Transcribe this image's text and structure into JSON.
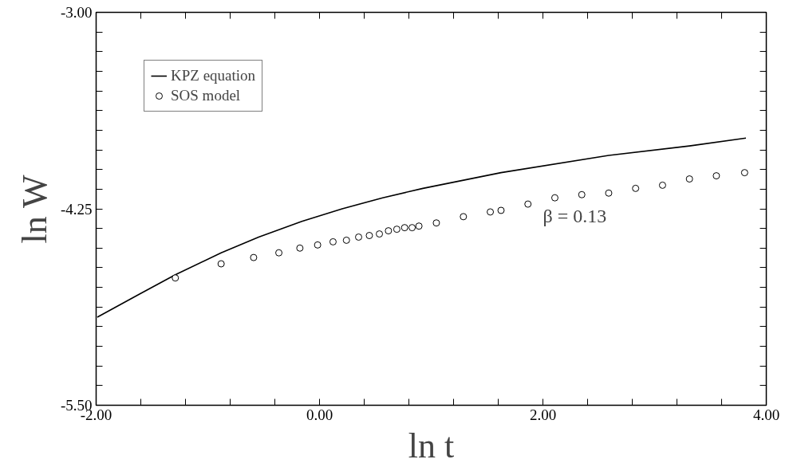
{
  "chart_data": {
    "type": "line",
    "xlabel": "ln t",
    "ylabel": "ln W",
    "xlim": [
      -2.0,
      4.0
    ],
    "ylim": [
      -5.5,
      -3.0
    ],
    "xticks": [
      {
        "value": -2,
        "label": "-2.00"
      },
      {
        "value": -1.6,
        "label": null
      },
      {
        "value": -1.2,
        "label": null
      },
      {
        "value": -0.8,
        "label": null
      },
      {
        "value": -0.4,
        "label": null
      },
      {
        "value": 0,
        "label": "0.00"
      },
      {
        "value": 0.4,
        "label": null
      },
      {
        "value": 0.8,
        "label": null
      },
      {
        "value": 1.2,
        "label": null
      },
      {
        "value": 1.6,
        "label": null
      },
      {
        "value": 2,
        "label": "2.00"
      },
      {
        "value": 2.4,
        "label": null
      },
      {
        "value": 2.8,
        "label": null
      },
      {
        "value": 3.2,
        "label": null
      },
      {
        "value": 3.6,
        "label": null
      },
      {
        "value": 4,
        "label": "4.00"
      }
    ],
    "yticks": [
      {
        "value": -5.5,
        "label": "-5.50"
      },
      {
        "value": -5.375,
        "label": null
      },
      {
        "value": -5.25,
        "label": null
      },
      {
        "value": -5.125,
        "label": null
      },
      {
        "value": -5.0,
        "label": null
      },
      {
        "value": -4.875,
        "label": null
      },
      {
        "value": -4.75,
        "label": null
      },
      {
        "value": -4.625,
        "label": null
      },
      {
        "value": -4.5,
        "label": null
      },
      {
        "value": -4.375,
        "label": null
      },
      {
        "value": -4.25,
        "label": "-4.25"
      },
      {
        "value": -4.125,
        "label": null
      },
      {
        "value": -4.0,
        "label": null
      },
      {
        "value": -3.875,
        "label": null
      },
      {
        "value": -3.75,
        "label": null
      },
      {
        "value": -3.625,
        "label": null
      },
      {
        "value": -3.5,
        "label": null
      },
      {
        "value": -3.375,
        "label": null
      },
      {
        "value": -3.25,
        "label": null
      },
      {
        "value": -3.125,
        "label": null
      },
      {
        "value": -3.0,
        "label": "-3.00"
      }
    ],
    "grid": false,
    "legend": "top left",
    "series": [
      {
        "name": "KPZ equation",
        "color": "#000000",
        "line_style": "solid",
        "x": [
          -1.99,
          -1.605,
          -1.291,
          -0.881,
          -0.545,
          -0.158,
          0.203,
          0.565,
          0.926,
          1.625,
          2.589,
          3.312,
          3.818
        ],
        "values": [
          -4.94,
          -4.79,
          -4.67,
          -4.53,
          -4.43,
          -4.33,
          -4.25,
          -4.18,
          -4.12,
          -4.02,
          -3.91,
          -3.85,
          -3.8
        ]
      },
      {
        "name": "SOS model",
        "type": "scatter",
        "marker": "circle",
        "color": "#000000",
        "x": [
          -1.291,
          -0.881,
          -0.59,
          -0.364,
          -0.176,
          -0.017,
          0.121,
          0.241,
          0.35,
          0.446,
          0.536,
          0.617,
          0.692,
          0.762,
          0.829,
          0.89,
          1.046,
          1.288,
          1.529,
          1.625,
          1.866,
          2.107,
          2.348,
          2.589,
          2.83,
          3.071,
          3.312,
          3.553,
          3.806
        ],
        "values": [
          -4.69,
          -4.6,
          -4.56,
          -4.53,
          -4.5,
          -4.48,
          -4.46,
          -4.45,
          -4.43,
          -4.42,
          -4.41,
          -4.39,
          -4.38,
          -4.37,
          -4.37,
          -4.36,
          -4.34,
          -4.3,
          -4.27,
          -4.26,
          -4.22,
          -4.18,
          -4.16,
          -4.15,
          -4.12,
          -4.1,
          -4.06,
          -4.04,
          -4.02
        ]
      }
    ],
    "annotations": [
      "β = 0.13"
    ]
  }
}
